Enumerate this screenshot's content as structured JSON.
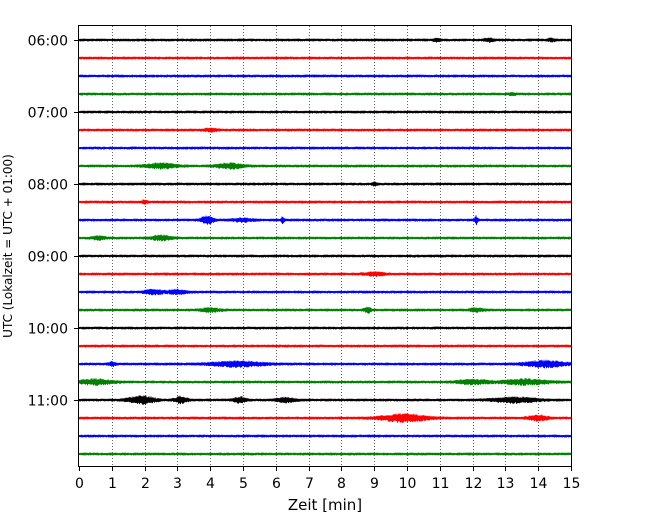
{
  "chart_data": {
    "type": "line",
    "title": "",
    "xlabel": "Zeit  [min]",
    "ylabel": "UTC (Lokalzeit = UTC + 01:00)",
    "xlim": [
      0,
      15
    ],
    "x_ticks": [
      0,
      1,
      2,
      3,
      4,
      5,
      6,
      7,
      8,
      9,
      10,
      11,
      12,
      13,
      14,
      15
    ],
    "y_tick_labels": [
      "06:00",
      "07:00",
      "08:00",
      "09:00",
      "10:00",
      "11:00"
    ],
    "grid": "vertical dotted lines at every minute",
    "legend": "none",
    "trace_interval_min": 15,
    "color_cycle": [
      "#000000",
      "#ff0000",
      "#0000ff",
      "#008000"
    ],
    "traces": [
      {
        "start": "06:00",
        "color": "#000000",
        "events": [
          {
            "t": 10.9,
            "amp": 1.6,
            "dur": 0.1
          },
          {
            "t": 12.5,
            "amp": 1.4,
            "dur": 0.15
          },
          {
            "t": 14.4,
            "amp": 1.5,
            "dur": 0.1
          }
        ]
      },
      {
        "start": "06:15",
        "color": "#ff0000",
        "events": []
      },
      {
        "start": "06:30",
        "color": "#0000ff",
        "events": []
      },
      {
        "start": "06:45",
        "color": "#008000",
        "events": [
          {
            "t": 13.2,
            "amp": 1.3,
            "dur": 0.1
          }
        ]
      },
      {
        "start": "07:00",
        "color": "#000000",
        "events": []
      },
      {
        "start": "07:15",
        "color": "#ff0000",
        "events": [
          {
            "t": 4.0,
            "amp": 1.3,
            "dur": 0.2
          }
        ]
      },
      {
        "start": "07:30",
        "color": "#0000ff",
        "events": []
      },
      {
        "start": "07:45",
        "color": "#008000",
        "events": [
          {
            "t": 2.5,
            "amp": 2.2,
            "dur": 0.5
          },
          {
            "t": 4.6,
            "amp": 2.5,
            "dur": 0.4
          }
        ]
      },
      {
        "start": "08:00",
        "color": "#000000",
        "events": [
          {
            "t": 9.0,
            "amp": 1.5,
            "dur": 0.08
          }
        ]
      },
      {
        "start": "08:15",
        "color": "#ff0000",
        "events": [
          {
            "t": 2.0,
            "amp": 1.4,
            "dur": 0.1
          }
        ]
      },
      {
        "start": "08:30",
        "color": "#0000ff",
        "events": [
          {
            "t": 3.9,
            "amp": 3.4,
            "dur": 0.2
          },
          {
            "t": 5.0,
            "amp": 1.6,
            "dur": 0.3
          },
          {
            "t": 6.2,
            "amp": 3.0,
            "dur": 0.05
          },
          {
            "t": 12.1,
            "amp": 4.0,
            "dur": 0.05
          }
        ]
      },
      {
        "start": "08:45",
        "color": "#008000",
        "events": [
          {
            "t": 0.6,
            "amp": 1.5,
            "dur": 0.2
          },
          {
            "t": 2.5,
            "amp": 2.2,
            "dur": 0.3
          }
        ]
      },
      {
        "start": "09:00",
        "color": "#000000",
        "events": []
      },
      {
        "start": "09:15",
        "color": "#ff0000",
        "events": [
          {
            "t": 9.0,
            "amp": 1.6,
            "dur": 0.3
          }
        ]
      },
      {
        "start": "09:30",
        "color": "#0000ff",
        "events": [
          {
            "t": 2.3,
            "amp": 2.0,
            "dur": 0.3
          },
          {
            "t": 3.0,
            "amp": 2.0,
            "dur": 0.25
          }
        ]
      },
      {
        "start": "09:45",
        "color": "#008000",
        "events": [
          {
            "t": 4.0,
            "amp": 1.6,
            "dur": 0.3
          },
          {
            "t": 8.8,
            "amp": 3.0,
            "dur": 0.1
          },
          {
            "t": 12.1,
            "amp": 1.5,
            "dur": 0.2
          }
        ]
      },
      {
        "start": "10:00",
        "color": "#000000",
        "events": []
      },
      {
        "start": "10:15",
        "color": "#ff0000",
        "events": []
      },
      {
        "start": "10:30",
        "color": "#0000ff",
        "events": [
          {
            "t": 1.0,
            "amp": 1.8,
            "dur": 0.1
          },
          {
            "t": 4.8,
            "amp": 2.4,
            "dur": 0.8
          },
          {
            "t": 14.2,
            "amp": 3.0,
            "dur": 0.6
          }
        ]
      },
      {
        "start": "10:45",
        "color": "#008000",
        "events": [
          {
            "t": 0.5,
            "amp": 2.6,
            "dur": 0.5
          },
          {
            "t": 12.0,
            "amp": 2.0,
            "dur": 0.5
          },
          {
            "t": 13.6,
            "amp": 2.6,
            "dur": 0.7
          }
        ]
      },
      {
        "start": "11:00",
        "color": "#000000",
        "events": [
          {
            "t": 1.9,
            "amp": 3.6,
            "dur": 0.4
          },
          {
            "t": 3.1,
            "amp": 3.0,
            "dur": 0.2
          },
          {
            "t": 4.9,
            "amp": 2.6,
            "dur": 0.2
          },
          {
            "t": 6.3,
            "amp": 2.0,
            "dur": 0.3
          },
          {
            "t": 13.3,
            "amp": 2.4,
            "dur": 0.7
          }
        ]
      },
      {
        "start": "11:15",
        "color": "#ff0000",
        "events": [
          {
            "t": 9.9,
            "amp": 3.6,
            "dur": 0.7
          },
          {
            "t": 14.0,
            "amp": 2.4,
            "dur": 0.3
          }
        ]
      },
      {
        "start": "11:30",
        "color": "#0000ff",
        "events": []
      },
      {
        "start": "11:45",
        "color": "#008000",
        "events": []
      }
    ]
  }
}
